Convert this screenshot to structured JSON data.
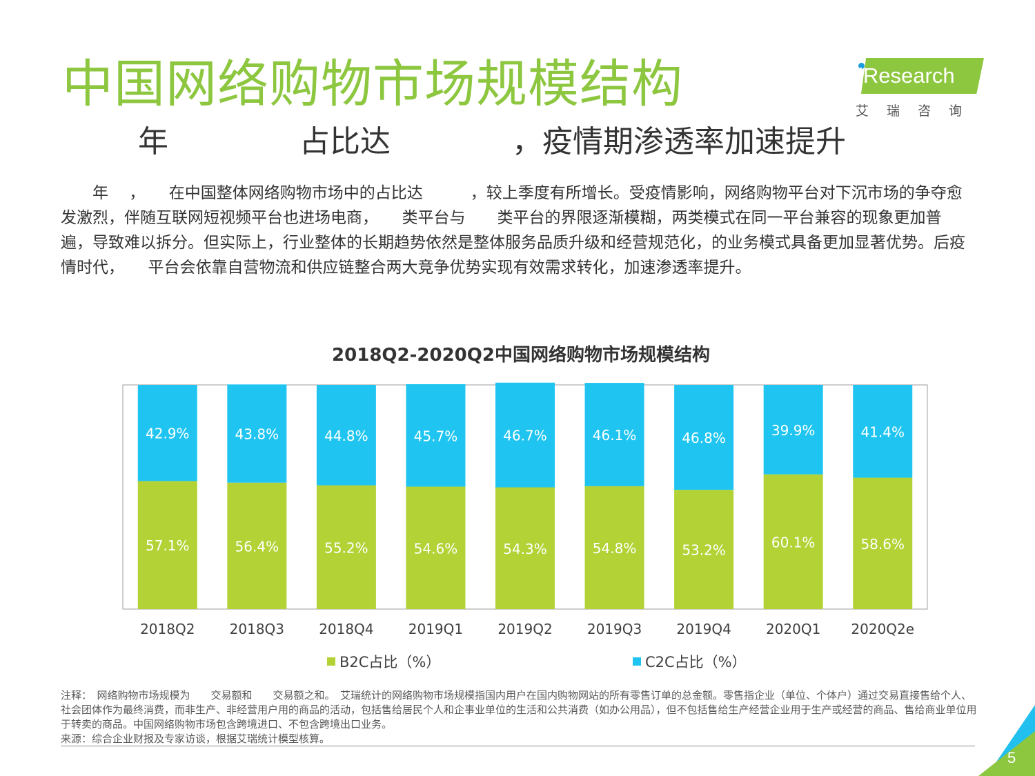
{
  "header": {
    "title": "中国网络购物市场规模结构",
    "subtitle": "年　　　　 占比达　　　　，疫情期渗透率加速提升"
  },
  "logo": {
    "brand": "iResearch",
    "cn": "艾瑞咨询"
  },
  "paragraph": "　　年　 ，　　在中国整体网络购物市场中的占比达　　　，较上季度有所增长。受疫情影响，网络购物平台对下沉市场的争夺愈发激烈，伴随互联网短视频平台也进场电商，　　类平台与　　类平台的界限逐渐模糊，两类模式在同一平台兼容的现象更加普遍，导致难以拆分。但实际上，行业整体的长期趋势依然是整体服务品质升级和经营规范化，的业务模式具备更加显著优势。后疫情时代，　　平台会依靠自营物流和供应链整合两大竞争优势实现有效需求转化，加速渗透率提升。",
  "chart_data": {
    "type": "bar",
    "stacked": true,
    "percent": true,
    "title": "2018Q2-2020Q2中国网络购物市场规模结构",
    "categories": [
      "2018Q2",
      "2018Q3",
      "2018Q4",
      "2019Q1",
      "2019Q2",
      "2019Q3",
      "2019Q4",
      "2020Q1",
      "2020Q2e"
    ],
    "series": [
      {
        "name": "B2C占比（%）",
        "color": "#b2d235",
        "values": [
          57.1,
          56.4,
          55.2,
          54.6,
          54.3,
          54.8,
          53.2,
          60.1,
          58.6
        ],
        "labels": [
          "57.1%",
          "56.4%",
          "55.2%",
          "54.6%",
          "54.3%",
          "54.8%",
          "53.2%",
          "60.1%",
          "58.6%"
        ]
      },
      {
        "name": "C2C占比（%）",
        "color": "#1fc5f0",
        "values": [
          42.9,
          43.8,
          44.8,
          45.7,
          46.7,
          46.1,
          46.8,
          39.9,
          41.4
        ],
        "labels": [
          "42.9%",
          "43.8%",
          "44.8%",
          "45.7%",
          "46.7%",
          "46.1%",
          "46.8%",
          "39.9%",
          "41.4%"
        ]
      }
    ],
    "xlabel": "",
    "ylabel": "",
    "ylim": [
      0,
      100
    ],
    "grid": false,
    "legend": "bottom"
  },
  "footnote": {
    "note": "注释：　网络购物市场规模为　　交易额和　　交易额之和。　艾瑞统计的网络购物市场规模指国内用户在国内购物网站的所有零售订单的总金额。零售指企业（单位、个体户）通过交易直接售给个人、社会团体作为最终消费，而非生产、非经营用户用的商品的活动，包括售给居民个人和企事业单位的生活和公共消费（如办公用品），但不包括售给生产经营企业用于生产或经营的商品、售给商业单位用于转卖的商品。中国网络购物市场包含跨境进口、不包含跨境出口业务。",
    "source": "来源：综合企业财报及专家访谈，根据艾瑞统计模型核算。"
  },
  "page": {
    "number": "5"
  }
}
